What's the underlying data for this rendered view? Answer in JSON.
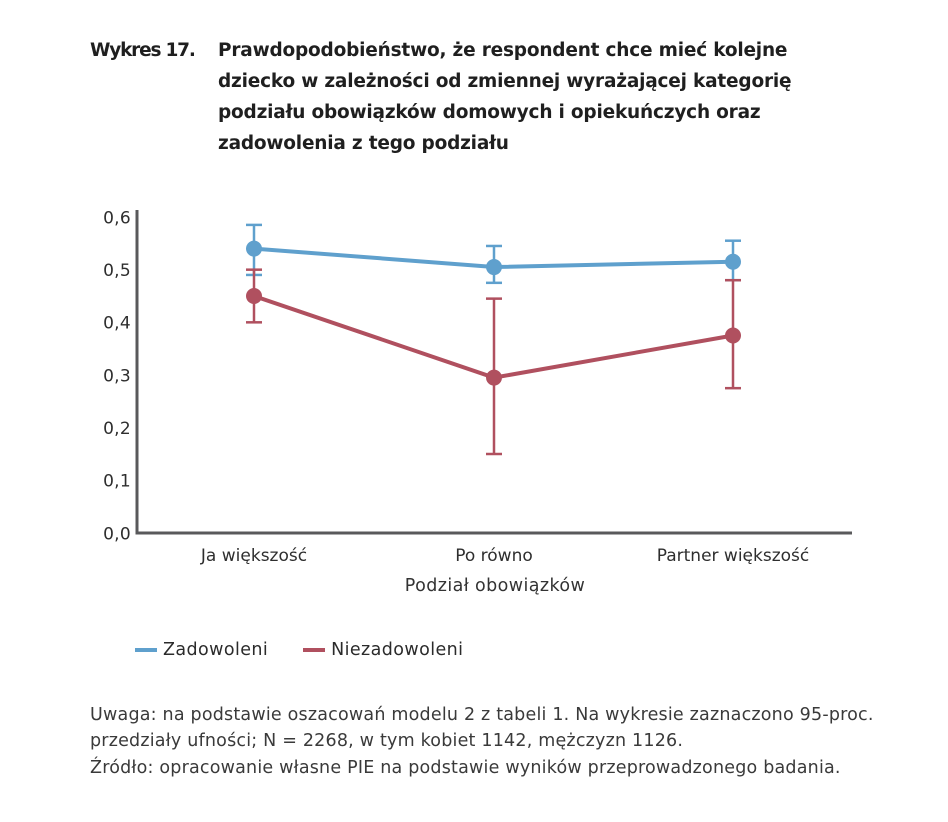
{
  "caption": {
    "label": "Wykres 17.",
    "text": "Prawdopodobieństwo, że respondent chce mieć kolejne\ndziecko w zależności od zmiennej wyrażającej kategorię\npodziału obowiązków domowych i opiekuńczych oraz\nzadowolenia z tego podziału"
  },
  "chart_data": {
    "type": "line",
    "categories": [
      "Ja większość",
      "Po równo",
      "Partner większość"
    ],
    "series": [
      {
        "name": "Zadowoleni",
        "color": "#5fa0cd",
        "values": [
          0.54,
          0.505,
          0.515
        ],
        "ci_low": [
          0.49,
          0.475,
          0.48
        ],
        "ci_high": [
          0.585,
          0.545,
          0.555
        ]
      },
      {
        "name": "Niezadowoleni",
        "color": "#b0505f",
        "values": [
          0.45,
          0.295,
          0.375
        ],
        "ci_low": [
          0.4,
          0.15,
          0.275
        ],
        "ci_high": [
          0.5,
          0.445,
          0.48
        ]
      }
    ],
    "xlabel": "Podział obowiązków",
    "ylabel": "",
    "ylim": [
      0,
      0.6
    ],
    "yticks": [
      "0,0",
      "0,1",
      "0,2",
      "0,3",
      "0,4",
      "0,5",
      "0,6"
    ],
    "grid": false,
    "legend_position": "bottom",
    "error_bars": "95% confidence intervals"
  },
  "footer": {
    "uwaga": "Uwaga: na podstawie oszacowań modelu 2 z tabeli 1. Na wykresie zaznaczono 95-proc.\nprzedziały ufności; N = 2268, w tym kobiet 1142, mężczyzn 1126.",
    "zrodlo": "Źródło: opracowanie własne PIE na podstawie wyników przeprowadzonego badania."
  }
}
